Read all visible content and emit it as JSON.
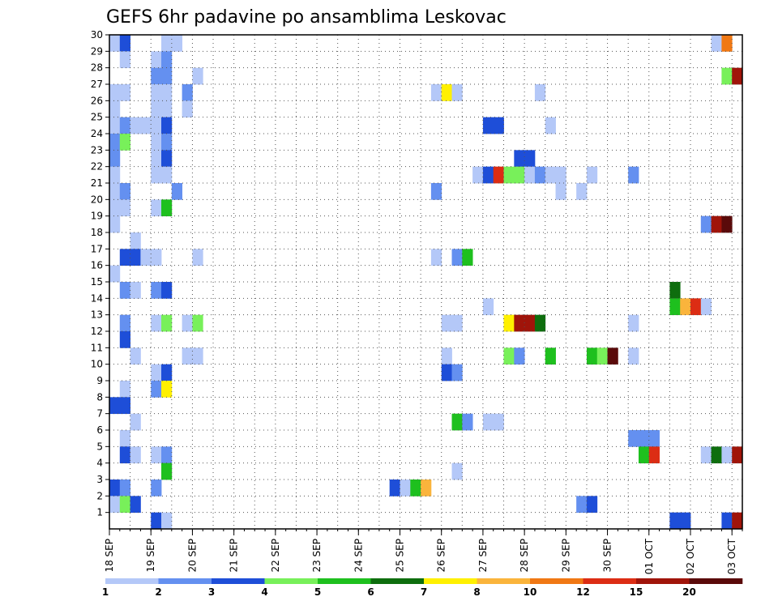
{
  "chart_data": {
    "type": "heatmap",
    "title": "GEFS 6hr padavine po ansamblima Leskovac",
    "xlabel": "",
    "ylabel": "",
    "x_ticks": [
      "18 SEP",
      "19 SEP",
      "20 SEP",
      "21 SEP",
      "22 SEP",
      "23 SEP",
      "24 SEP",
      "25 SEP",
      "26 SEP",
      "27 SEP",
      "28 SEP",
      "29 SEP",
      "30 SEP",
      "01 OCT",
      "02 OCT",
      "03 OCT"
    ],
    "y_ticks": [
      "1",
      "2",
      "3",
      "4",
      "5",
      "6",
      "7",
      "8",
      "9",
      "10",
      "11",
      "12",
      "13",
      "14",
      "15",
      "16",
      "17",
      "18",
      "19",
      "20",
      "21",
      "22",
      "23",
      "24",
      "25",
      "26",
      "27",
      "28",
      "29",
      "30"
    ],
    "x_range_steps": [
      0,
      61
    ],
    "x_step_hours": 6,
    "y_range": [
      0,
      30
    ],
    "grid": true,
    "colorbar": {
      "labels": [
        "1",
        "2",
        "3",
        "4",
        "5",
        "6",
        "7",
        "8",
        "10",
        "12",
        "15",
        "20"
      ],
      "colors": [
        "#b4c8f8",
        "#6490f0",
        "#1e4ed8",
        "#78f05a",
        "#1ec01e",
        "#0e6e0e",
        "#fff000",
        "#fab43c",
        "#f07814",
        "#dc2d14",
        "#a0140a",
        "#5a0a0a"
      ]
    },
    "cells": [
      [
        1,
        1,
        30
      ],
      [
        2,
        3,
        30
      ],
      [
        6,
        1,
        30
      ],
      [
        7,
        1,
        30
      ],
      [
        59,
        1,
        30
      ],
      [
        60,
        9,
        30
      ],
      [
        2,
        1,
        29
      ],
      [
        5,
        1,
        29
      ],
      [
        6,
        2,
        29
      ],
      [
        5,
        2,
        28
      ],
      [
        6,
        2,
        28
      ],
      [
        9,
        1,
        28
      ],
      [
        60,
        4,
        28
      ],
      [
        61,
        11,
        28
      ],
      [
        1,
        1,
        27
      ],
      [
        2,
        1,
        27
      ],
      [
        5,
        1,
        27
      ],
      [
        6,
        1,
        27
      ],
      [
        8,
        2,
        27
      ],
      [
        32,
        1,
        27
      ],
      [
        33,
        7,
        27
      ],
      [
        34,
        1,
        27
      ],
      [
        42,
        1,
        27
      ],
      [
        1,
        1,
        26
      ],
      [
        5,
        1,
        26
      ],
      [
        6,
        1,
        26
      ],
      [
        8,
        1,
        26
      ],
      [
        1,
        1,
        25
      ],
      [
        2,
        2,
        25
      ],
      [
        3,
        1,
        25
      ],
      [
        4,
        1,
        25
      ],
      [
        5,
        1,
        25
      ],
      [
        6,
        3,
        25
      ],
      [
        37,
        3,
        25
      ],
      [
        38,
        3,
        25
      ],
      [
        43,
        1,
        25
      ],
      [
        1,
        2,
        24
      ],
      [
        2,
        4,
        24
      ],
      [
        5,
        1,
        24
      ],
      [
        6,
        2,
        24
      ],
      [
        1,
        2,
        23
      ],
      [
        5,
        1,
        23
      ],
      [
        6,
        3,
        23
      ],
      [
        40,
        3,
        23
      ],
      [
        41,
        3,
        23
      ],
      [
        1,
        1,
        22
      ],
      [
        5,
        1,
        22
      ],
      [
        6,
        1,
        22
      ],
      [
        36,
        1,
        22
      ],
      [
        37,
        3,
        22
      ],
      [
        38,
        10,
        22
      ],
      [
        39,
        4,
        22
      ],
      [
        40,
        4,
        22
      ],
      [
        41,
        1,
        22
      ],
      [
        42,
        2,
        22
      ],
      [
        43,
        1,
        22
      ],
      [
        44,
        1,
        22
      ],
      [
        47,
        1,
        22
      ],
      [
        51,
        2,
        22
      ],
      [
        1,
        1,
        21
      ],
      [
        2,
        2,
        21
      ],
      [
        7,
        2,
        21
      ],
      [
        32,
        2,
        21
      ],
      [
        44,
        1,
        21
      ],
      [
        46,
        1,
        21
      ],
      [
        1,
        1,
        20
      ],
      [
        2,
        1,
        20
      ],
      [
        5,
        1,
        20
      ],
      [
        6,
        5,
        20
      ],
      [
        1,
        1,
        19
      ],
      [
        58,
        2,
        19
      ],
      [
        59,
        11,
        19
      ],
      [
        60,
        12,
        19
      ],
      [
        3,
        1,
        18
      ],
      [
        2,
        3,
        17
      ],
      [
        3,
        3,
        17
      ],
      [
        4,
        1,
        17
      ],
      [
        5,
        1,
        17
      ],
      [
        9,
        1,
        17
      ],
      [
        32,
        1,
        17
      ],
      [
        34,
        2,
        17
      ],
      [
        35,
        5,
        17
      ],
      [
        1,
        1,
        16
      ],
      [
        2,
        2,
        15
      ],
      [
        3,
        1,
        15
      ],
      [
        5,
        2,
        15
      ],
      [
        6,
        3,
        15
      ],
      [
        55,
        6,
        15
      ],
      [
        37,
        1,
        14
      ],
      [
        55,
        5,
        14
      ],
      [
        56,
        8,
        14
      ],
      [
        57,
        10,
        14
      ],
      [
        58,
        1,
        14
      ],
      [
        2,
        2,
        13
      ],
      [
        5,
        1,
        13
      ],
      [
        6,
        4,
        13
      ],
      [
        8,
        1,
        13
      ],
      [
        9,
        4,
        13
      ],
      [
        33,
        1,
        13
      ],
      [
        34,
        1,
        13
      ],
      [
        39,
        7,
        13
      ],
      [
        40,
        11,
        13
      ],
      [
        41,
        11,
        13
      ],
      [
        42,
        6,
        13
      ],
      [
        51,
        1,
        13
      ],
      [
        2,
        3,
        12
      ],
      [
        3,
        1,
        11
      ],
      [
        8,
        1,
        11
      ],
      [
        9,
        1,
        11
      ],
      [
        33,
        1,
        11
      ],
      [
        39,
        4,
        11
      ],
      [
        40,
        2,
        11
      ],
      [
        43,
        5,
        11
      ],
      [
        47,
        5,
        11
      ],
      [
        48,
        4,
        11
      ],
      [
        49,
        12,
        11
      ],
      [
        51,
        1,
        11
      ],
      [
        5,
        1,
        10
      ],
      [
        6,
        3,
        10
      ],
      [
        33,
        3,
        10
      ],
      [
        34,
        2,
        10
      ],
      [
        2,
        1,
        9
      ],
      [
        5,
        2,
        9
      ],
      [
        6,
        7,
        9
      ],
      [
        1,
        3,
        8
      ],
      [
        2,
        3,
        8
      ],
      [
        3,
        1,
        7
      ],
      [
        34,
        5,
        7
      ],
      [
        35,
        2,
        7
      ],
      [
        37,
        1,
        7
      ],
      [
        38,
        1,
        7
      ],
      [
        2,
        1,
        6
      ],
      [
        51,
        2,
        6
      ],
      [
        52,
        2,
        6
      ],
      [
        53,
        2,
        6
      ],
      [
        2,
        3,
        5
      ],
      [
        3,
        1,
        5
      ],
      [
        5,
        1,
        5
      ],
      [
        6,
        2,
        5
      ],
      [
        52,
        5,
        5
      ],
      [
        53,
        10,
        5
      ],
      [
        58,
        1,
        5
      ],
      [
        59,
        6,
        5
      ],
      [
        60,
        1,
        5
      ],
      [
        61,
        11,
        5
      ],
      [
        6,
        5,
        4
      ],
      [
        34,
        1,
        4
      ],
      [
        1,
        3,
        3
      ],
      [
        2,
        2,
        3
      ],
      [
        5,
        2,
        3
      ],
      [
        28,
        3,
        3
      ],
      [
        29,
        1,
        3
      ],
      [
        30,
        5,
        3
      ],
      [
        31,
        8,
        3
      ],
      [
        1,
        1,
        2
      ],
      [
        2,
        4,
        2
      ],
      [
        3,
        3,
        2
      ],
      [
        46,
        2,
        2
      ],
      [
        47,
        3,
        2
      ],
      [
        5,
        3,
        1
      ],
      [
        6,
        1,
        1
      ],
      [
        55,
        3,
        1
      ],
      [
        56,
        3,
        1
      ],
      [
        60,
        3,
        1
      ],
      [
        61,
        11,
        1
      ]
    ]
  }
}
